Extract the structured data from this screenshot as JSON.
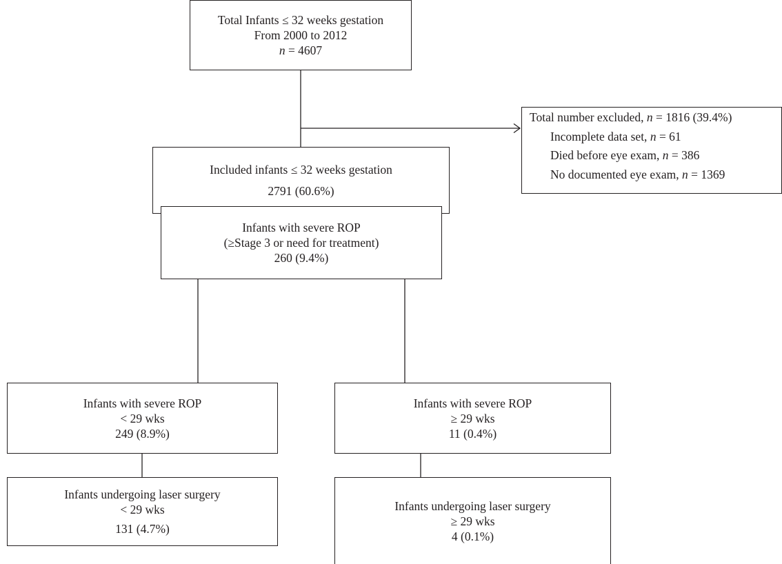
{
  "total": {
    "line1": "Total Infants ≤ 32 weeks gestation",
    "line2": "From 2000 to 2012",
    "n_label": "n",
    "n_value": "= 4607"
  },
  "excluded": {
    "title_pre": "Total number excluded,",
    "title_n": "n",
    "title_val": "= 1816 (39.4%)",
    "items": [
      {
        "label": "Incomplete data set,",
        "n": "n",
        "value": "= 61"
      },
      {
        "label": "Died before eye exam,",
        "n": "n",
        "value": "= 386"
      },
      {
        "label": "No documented eye exam,",
        "n": "n",
        "value": "= 1369"
      }
    ]
  },
  "included": {
    "line1": "Included infants ≤ 32 weeks gestation",
    "line2": "2791 (60.6%)"
  },
  "severe": {
    "line1": "Infants with severe ROP",
    "line2": "(≥Stage 3 or need for treatment)",
    "line3": "260 (9.4%)"
  },
  "severe_lt29": {
    "line1": "Infants with severe ROP",
    "line2": "< 29 wks",
    "line3": "249 (8.9%)"
  },
  "severe_ge29": {
    "line1": "Infants with severe ROP",
    "line2": "≥ 29 wks",
    "line3": "11 (0.4%)"
  },
  "laser_lt29": {
    "line1": "Infants undergoing laser surgery",
    "line2": "< 29 wks",
    "line3": "131 (4.7%)"
  },
  "laser_ge29": {
    "line1": "Infants undergoing laser surgery",
    "line2": "≥ 29 wks",
    "line3": "4 (0.1%)"
  }
}
